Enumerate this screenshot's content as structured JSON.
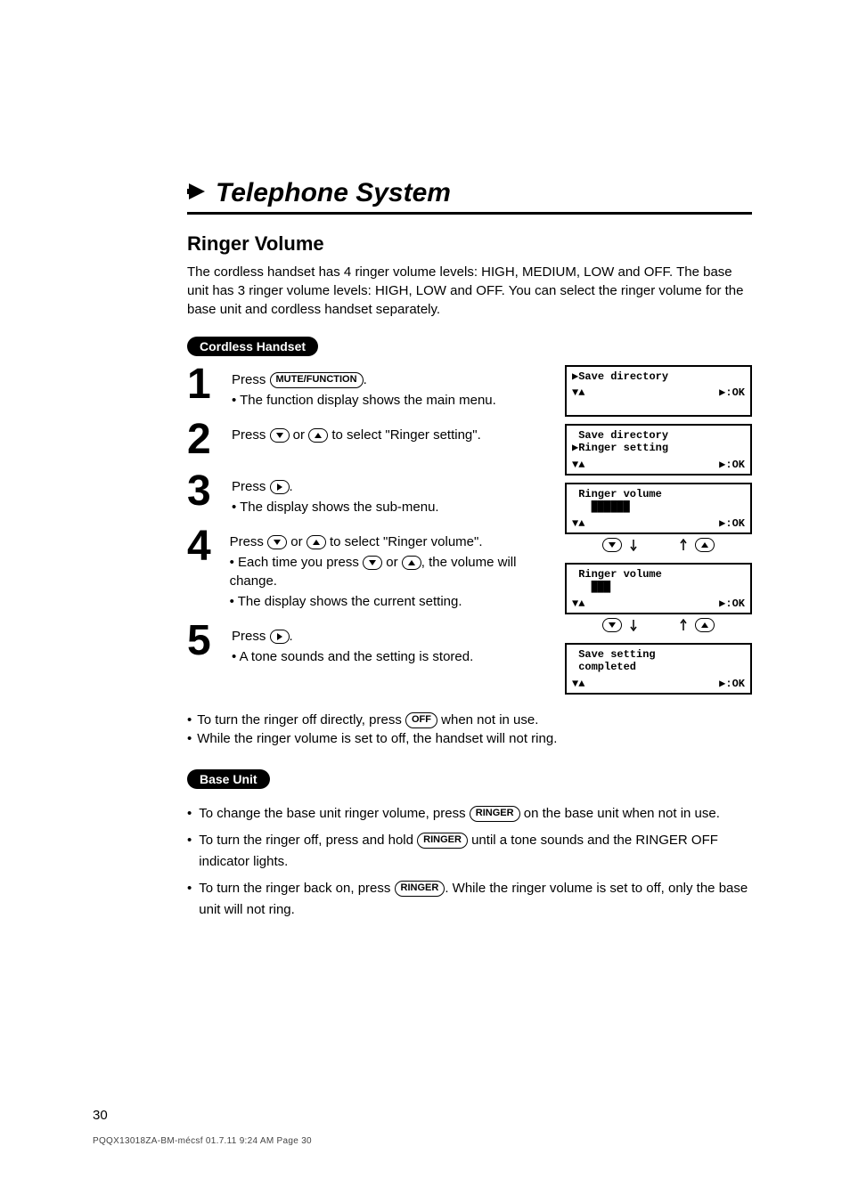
{
  "title": "Telephone System",
  "section_title": "Ringer Volume",
  "intro": "The cordless handset has 4 ringer volume levels: HIGH, MEDIUM, LOW and OFF. The base unit has 3 ringer volume levels: HIGH, LOW and OFF. You can select the ringer volume for the base unit and cordless handset separately.",
  "handset_pill": "Cordless Handset",
  "base_pill": "Base Unit",
  "keys": {
    "mute_function": "MUTE/FUNCTION",
    "off": "OFF",
    "ringer": "RINGER"
  },
  "steps": [
    {
      "num": "1",
      "lines": [
        {
          "pre": "Press ",
          "key": "MUTE/FUNCTION",
          "post": "."
        },
        {
          "plain": true,
          "text": "• The function display shows the main menu."
        }
      ]
    },
    {
      "num": "2",
      "lines": [
        {
          "pre": "Press ",
          "icon": "down",
          "mid": " or ",
          "icon2": "up",
          "post": " to select \"Ringer setting\"."
        }
      ]
    },
    {
      "num": "3",
      "lines": [
        {
          "pre": "Press ",
          "icon": "right",
          "post": "."
        },
        {
          "plain": true,
          "text": "• The display shows the sub-menu."
        }
      ]
    },
    {
      "num": "4",
      "lines": [
        {
          "pre": "Press ",
          "icon": "down",
          "mid": " or ",
          "icon2": "up",
          "post": " to select \"Ringer volume\"."
        },
        {
          "plain": true,
          "pre": "• Each time you press ",
          "icon": "down",
          "mid": " or ",
          "icon2": "up",
          "post": ", the volume will change."
        },
        {
          "plain": true,
          "text": "• The display shows the current setting."
        }
      ]
    },
    {
      "num": "5",
      "lines": [
        {
          "pre": "Press ",
          "icon": "right",
          "post": "."
        },
        {
          "plain": true,
          "text": "• A tone sounds and the setting is stored."
        }
      ]
    }
  ],
  "notes": [
    {
      "pre": "To turn the ringer off directly, press ",
      "key": "OFF",
      "post": " when not in use."
    },
    {
      "text": "While the ringer volume is set to off, the handset will not ring."
    }
  ],
  "base_lines": [
    {
      "pre": "To change the base unit ringer volume, press ",
      "key": "RINGER",
      "post": " on the base unit when not in use."
    },
    {
      "pre": "To turn the ringer off, press and hold ",
      "key": "RINGER",
      "post": " until a tone sounds and the RINGER OFF indicator lights."
    },
    {
      "pre": "To turn the ringer back on, press ",
      "key": "RINGER",
      "post": ". While the ringer volume is set to off, only the base unit will not ring."
    }
  ],
  "screens": [
    {
      "line1": "▶Save directory",
      "nav_da": "▼▲",
      "nav_text": "",
      "ok": "▶:OK"
    },
    {
      "line1": " Save directory",
      "line1b": "▶Ringer setting",
      "nav_da": "▼▲",
      "ok": "▶:OK"
    },
    {
      "line1": " Ringer volume",
      "vol": "██████",
      "nav_da": "▼▲",
      "ok": "▶:OK",
      "has_vol_keys": true
    },
    {
      "line1": " Ringer volume",
      "vol": "███",
      "nav_da": "▼▲",
      "ok": "▶:OK",
      "has_vol_keys": true
    },
    {
      "line1": " Save setting",
      "line1b": " completed",
      "nav_da": "▼▲",
      "ok": "▶:OK"
    }
  ],
  "page_number": "30",
  "footer_text": "PQQX13018ZA-BM-mécsf  01.7.11 9:24 AM  Page 30"
}
